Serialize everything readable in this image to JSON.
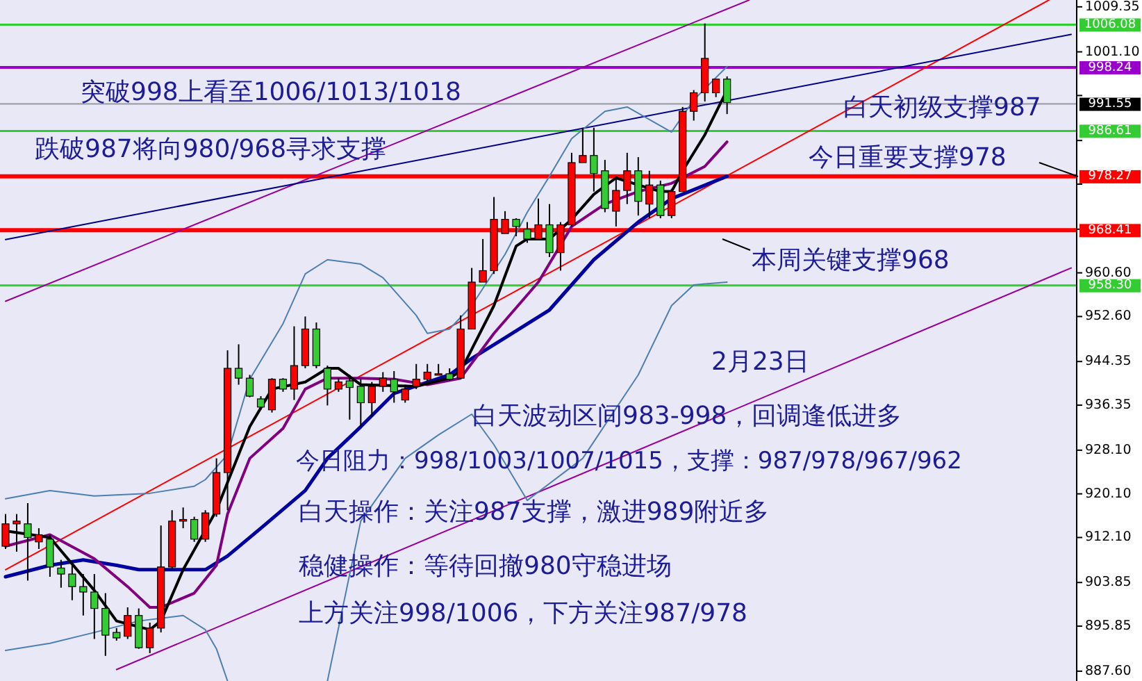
{
  "chart_data": {
    "type": "candlestick",
    "categories": [
      null,
      null,
      null,
      null,
      null,
      null,
      null,
      null,
      null,
      null,
      null,
      null,
      null,
      null,
      null,
      null,
      null,
      null,
      null,
      null,
      null,
      null,
      null,
      null,
      null,
      null,
      null,
      null,
      null,
      null,
      null,
      null,
      null,
      null,
      null,
      null,
      null,
      null,
      null,
      null,
      null,
      null,
      null,
      null,
      null,
      null,
      null,
      null,
      null,
      null,
      null,
      null,
      null,
      null,
      null,
      null,
      null,
      null,
      null,
      null,
      null,
      null,
      null,
      null,
      null,
      null,
      null,
      null,
      null,
      null,
      null,
      null,
      null,
      null,
      null,
      null,
      null,
      null,
      null,
      null,
      null,
      null,
      null,
      null,
      null,
      null,
      null,
      null,
      null,
      null,
      null,
      null,
      null,
      null,
      null,
      null,
      null
    ],
    "ohlc": [
      [
        910.5,
        916.4,
        910.0,
        914.6
      ],
      [
        914.6,
        916.4,
        909.5,
        915.1
      ],
      [
        914.6,
        918.4,
        904.2,
        912.1
      ],
      [
        911.3,
        913.8,
        910.0,
        912.6
      ],
      [
        911.8,
        912.6,
        904.9,
        906.7
      ],
      [
        906.5,
        908.0,
        902.9,
        905.4
      ],
      [
        905.4,
        907.0,
        900.6,
        903.1
      ],
      [
        903.1,
        905.4,
        897.8,
        902.1
      ],
      [
        902.1,
        905.4,
        893.5,
        899.1
      ],
      [
        899.1,
        901.9,
        890.4,
        894.2
      ],
      [
        894.7,
        895.5,
        893.2,
        893.7
      ],
      [
        894.0,
        899.3,
        893.5,
        897.8
      ],
      [
        897.8,
        899.1,
        891.7,
        891.9
      ],
      [
        891.9,
        896.5,
        890.9,
        895.5
      ],
      [
        895.5,
        914.3,
        894.7,
        906.7
      ],
      [
        906.7,
        917.1,
        906.2,
        915.1
      ],
      [
        915.1,
        917.6,
        913.8,
        915.4
      ],
      [
        915.4,
        915.9,
        911.3,
        911.8
      ],
      [
        911.8,
        917.1,
        911.3,
        916.6
      ],
      [
        916.4,
        926.6,
        915.9,
        924.0
      ],
      [
        924.0,
        946.4,
        917.1,
        943.1
      ],
      [
        943.1,
        947.5,
        940.1,
        941.3
      ],
      [
        941.3,
        941.9,
        937.8,
        938.0
      ],
      [
        937.5,
        938.0,
        935.5,
        936.0
      ],
      [
        935.5,
        941.3,
        935.0,
        941.1
      ],
      [
        941.1,
        941.3,
        938.8,
        939.3
      ],
      [
        939.3,
        950.8,
        937.3,
        943.6
      ],
      [
        943.6,
        952.6,
        943.1,
        950.3
      ],
      [
        950.3,
        951.5,
        943.1,
        943.6
      ],
      [
        943.1,
        943.6,
        936.3,
        939.3
      ],
      [
        939.3,
        941.3,
        938.8,
        940.6
      ],
      [
        940.8,
        941.9,
        933.7,
        939.6
      ],
      [
        939.8,
        941.1,
        932.4,
        936.8
      ],
      [
        936.8,
        940.6,
        934.2,
        939.8
      ],
      [
        939.8,
        942.4,
        938.8,
        941.3
      ],
      [
        941.1,
        942.6,
        936.8,
        938.8
      ],
      [
        937.3,
        940.1,
        936.8,
        939.3
      ],
      [
        939.8,
        943.9,
        939.3,
        941.1
      ],
      [
        941.1,
        943.9,
        940.6,
        942.4
      ],
      [
        942.1,
        943.9,
        941.9,
        942.1
      ],
      [
        942.1,
        943.1,
        940.8,
        941.1
      ],
      [
        941.3,
        952.8,
        941.1,
        950.3
      ],
      [
        950.3,
        961.5,
        950.3,
        958.9
      ],
      [
        958.9,
        966.8,
        958.9,
        961.0
      ],
      [
        961.0,
        974.5,
        960.4,
        970.4
      ],
      [
        967.8,
        971.9,
        967.8,
        970.4
      ],
      [
        970.4,
        970.6,
        967.3,
        969.1
      ],
      [
        968.6,
        969.9,
        966.1,
        966.8
      ],
      [
        966.8,
        974.2,
        966.8,
        969.4
      ],
      [
        969.4,
        973.2,
        963.5,
        964.3
      ],
      [
        964.3,
        969.9,
        961.0,
        969.4
      ],
      [
        969.4,
        982.6,
        969.1,
        980.8
      ],
      [
        980.8,
        987.2,
        980.8,
        982.1
      ],
      [
        982.1,
        987.2,
        975.5,
        978.8
      ],
      [
        979.3,
        981.3,
        971.7,
        972.4
      ],
      [
        971.9,
        978.3,
        969.1,
        975.7
      ],
      [
        975.7,
        982.6,
        973.2,
        979.3
      ],
      [
        979.3,
        981.8,
        971.1,
        973.7
      ],
      [
        973.2,
        979.3,
        970.6,
        976.7
      ],
      [
        976.7,
        977.5,
        970.6,
        971.1
      ],
      [
        971.1,
        976.0,
        970.6,
        975.5
      ],
      [
        975.5,
        991.0,
        975.5,
        990.2
      ],
      [
        990.2,
        994.1,
        988.5,
        993.6
      ],
      [
        993.6,
        1006.3,
        992.0,
        999.9
      ],
      [
        993.6,
        996.1,
        992.8,
        996.1
      ],
      [
        996.1,
        996.6,
        989.7,
        991.8
      ],
      null,
      null,
      null,
      null,
      null,
      null,
      null,
      null,
      null,
      null,
      null,
      null,
      null,
      null,
      null,
      null,
      null,
      null,
      null,
      null,
      null,
      null,
      null,
      null,
      null,
      null,
      null,
      null,
      null,
      null,
      null
    ],
    "colors": [
      "#ff0000",
      "#ff0000",
      "#33cc33",
      "#ff0000",
      "#33cc33",
      "#33cc33",
      "#33cc33",
      "#33cc33",
      "#33cc33",
      "#33cc33",
      "#33cc33",
      "#ff0000",
      "#33cc33",
      "#ff0000",
      "#ff0000",
      "#ff0000",
      "#ff0000",
      "#33cc33",
      "#ff0000",
      "#ff0000",
      "#ff0000",
      "#33cc33",
      "#33cc33",
      "#33cc33",
      "#ff0000",
      "#33cc33",
      "#ff0000",
      "#ff0000",
      "#33cc33",
      "#33cc33",
      "#ff0000",
      "#33cc33",
      "#33cc33",
      "#ff0000",
      "#ff0000",
      "#33cc33",
      "#ff0000",
      "#ff0000",
      "#ff0000",
      "#ff0000",
      "#33cc33",
      "#ff0000",
      "#ff0000",
      "#ff0000",
      "#ff0000",
      "#ff0000",
      "#33cc33",
      "#33cc33",
      "#ff0000",
      "#33cc33",
      "#ff0000",
      "#ff0000",
      "#ff0000",
      "#33cc33",
      "#33cc33",
      "#ff0000",
      "#ff0000",
      "#33cc33",
      "#ff0000",
      "#33cc33",
      "#ff0000",
      "#ff0000",
      "#ff0000",
      "#ff0000",
      "#ff0000",
      "#33cc33",
      null,
      null,
      null,
      null,
      null,
      null,
      null,
      null,
      null,
      null,
      null,
      null,
      null,
      null,
      null,
      null,
      null,
      null,
      null,
      null,
      null,
      null,
      null,
      null,
      null,
      null,
      null,
      null,
      null,
      null,
      null
    ],
    "series": [
      {
        "type": "line",
        "color": "#990099",
        "values": [
          955.4,
          null,
          null,
          null,
          null,
          null,
          null,
          null,
          null,
          null,
          null,
          null,
          null,
          null,
          null,
          null,
          null,
          null,
          null,
          null,
          null,
          null,
          null,
          null,
          null,
          null,
          null,
          null,
          null,
          null,
          null,
          null,
          null,
          null,
          null,
          null,
          null,
          null,
          null,
          null,
          null,
          null,
          null,
          null,
          null,
          null,
          null,
          null,
          null,
          null,
          null,
          null,
          null,
          null,
          null,
          null,
          null,
          null,
          null,
          null,
          null,
          null,
          null,
          null,
          null,
          null,
          null,
          1010.6,
          null,
          null,
          null,
          null,
          null,
          null,
          null,
          null,
          null,
          null,
          null,
          null,
          null,
          null,
          null,
          null,
          null,
          null,
          null,
          null,
          null,
          null,
          null,
          null,
          null,
          null,
          null,
          null,
          null
        ]
      },
      {
        "type": "line",
        "color": "#990099",
        "values": [
          null,
          null,
          null,
          null,
          null,
          null,
          null,
          null,
          null,
          null,
          887.9,
          null,
          null,
          null,
          null,
          null,
          null,
          null,
          null,
          null,
          null,
          null,
          null,
          null,
          null,
          null,
          null,
          null,
          null,
          null,
          null,
          null,
          null,
          null,
          null,
          null,
          null,
          null,
          null,
          null,
          null,
          null,
          null,
          null,
          null,
          null,
          null,
          null,
          null,
          null,
          null,
          null,
          null,
          null,
          null,
          null,
          null,
          null,
          null,
          null,
          null,
          null,
          null,
          null,
          null,
          null,
          null,
          null,
          null,
          null,
          null,
          null,
          null,
          null,
          null,
          null,
          null,
          null,
          null,
          null,
          null,
          null,
          null,
          null,
          null,
          null,
          null,
          null,
          null,
          null,
          null,
          null,
          null,
          null,
          null,
          null,
          961.5
        ]
      },
      {
        "type": "line",
        "color": "#ff0000",
        "values": [
          906.2,
          null,
          null,
          null,
          null,
          null,
          null,
          null,
          null,
          null,
          null,
          null,
          null,
          null,
          null,
          null,
          null,
          null,
          null,
          null,
          null,
          null,
          null,
          null,
          null,
          null,
          null,
          null,
          null,
          null,
          null,
          null,
          null,
          null,
          null,
          null,
          null,
          null,
          null,
          null,
          null,
          null,
          null,
          null,
          null,
          null,
          null,
          null,
          null,
          null,
          null,
          null,
          null,
          null,
          null,
          null,
          null,
          null,
          null,
          null,
          null,
          null,
          null,
          null,
          null,
          null,
          null,
          null,
          null,
          null,
          null,
          null,
          null,
          null,
          null,
          null,
          null,
          null,
          null,
          null,
          null,
          null,
          null,
          null,
          null,
          null,
          null,
          null,
          null,
          null,
          null,
          null,
          null,
          null,
          1010.6,
          null,
          null
        ]
      },
      {
        "type": "line",
        "color": "#00008b",
        "values": [
          966.7,
          null,
          null,
          null,
          null,
          null,
          null,
          null,
          null,
          null,
          null,
          null,
          null,
          null,
          null,
          null,
          null,
          null,
          null,
          null,
          null,
          null,
          null,
          null,
          null,
          null,
          null,
          null,
          null,
          null,
          null,
          null,
          null,
          null,
          null,
          null,
          null,
          null,
          null,
          null,
          null,
          null,
          null,
          null,
          null,
          null,
          null,
          null,
          null,
          null,
          null,
          null,
          null,
          null,
          null,
          null,
          null,
          null,
          null,
          null,
          null,
          null,
          null,
          null,
          null,
          null,
          null,
          null,
          null,
          null,
          null,
          null,
          null,
          null,
          null,
          null,
          null,
          null,
          null,
          null,
          null,
          null,
          null,
          null,
          null,
          null,
          null,
          null,
          null,
          null,
          null,
          null,
          null,
          null,
          null,
          null,
          1004.3
        ]
      },
      {
        "type": "line",
        "color": "#4f7fb0",
        "values": [
          919.2,
          null,
          null,
          null,
          920.7,
          null,
          null,
          null,
          919.7,
          null,
          null,
          null,
          null,
          920.2,
          null,
          null,
          null,
          921.5,
          922.7,
          null,
          927.3,
          null,
          941.1,
          null,
          null,
          951.3,
          null,
          960.4,
          null,
          963.0,
          null,
          null,
          962.2,
          null,
          959.7,
          null,
          null,
          952.8,
          949.5,
          null,
          950.3,
          null,
          954.6,
          null,
          null,
          964.0,
          null,
          971.7,
          null,
          978.3,
          null,
          985.2,
          null,
          null,
          990.2,
          null,
          991.0,
          null,
          null,
          null,
          986.4,
          null,
          992.3,
          null,
          null,
          998.4,
          null,
          null,
          null,
          null,
          null,
          null,
          null,
          null,
          null,
          null,
          null,
          null,
          null,
          null,
          null,
          null,
          null,
          null,
          null,
          null,
          null,
          null,
          null,
          null,
          null,
          null,
          null,
          null,
          null,
          null,
          null
        ]
      },
      {
        "type": "line",
        "color": "#4f7fb0",
        "values": [
          891.4,
          null,
          null,
          null,
          892.7,
          null,
          null,
          null,
          894.7,
          null,
          null,
          null,
          896.8,
          null,
          null,
          null,
          897.8,
          null,
          895.2,
          891.7,
          885.8,
          null,
          null,
          null,
          null,
          null,
          null,
          null,
          null,
          null,
          null,
          null,
          null,
          null,
          null,
          null,
          null,
          null,
          null,
          null,
          null,
          null,
          null,
          null,
          null,
          null,
          null,
          null,
          null,
          null,
          null,
          null,
          null,
          null,
          null,
          null,
          null,
          null,
          null,
          null,
          null,
          null,
          null,
          null,
          null,
          null,
          null,
          null,
          null,
          null,
          null,
          null,
          null,
          null,
          null,
          null,
          null,
          null,
          null,
          null,
          null,
          null,
          null,
          null,
          null,
          null,
          null,
          null,
          null,
          null,
          null,
          null,
          null,
          null,
          null,
          null,
          null
        ]
      },
      {
        "type": "line",
        "color": "#4f7fb0",
        "values": [
          null,
          null,
          null,
          null,
          null,
          null,
          null,
          null,
          null,
          null,
          null,
          null,
          null,
          null,
          null,
          null,
          null,
          null,
          null,
          null,
          null,
          null,
          null,
          null,
          null,
          null,
          null,
          null,
          null,
          885.8,
          null,
          null,
          915.1,
          null,
          null,
          null,
          926.6,
          null,
          null,
          930.9,
          null,
          null,
          934.7,
          null,
          929.1,
          null,
          null,
          918.9,
          null,
          null,
          null,
          null,
          926.6,
          null,
          null,
          null,
          null,
          941.9,
          null,
          null,
          954.6,
          null,
          958.4,
          null,
          null,
          958.9,
          null,
          null,
          null,
          null,
          null,
          null,
          null,
          null,
          null,
          null,
          null,
          null,
          null,
          null,
          null,
          null,
          null,
          null,
          null,
          null,
          null,
          null,
          null,
          null,
          null,
          null,
          null,
          null,
          null,
          null,
          null
        ]
      },
      {
        "type": "line",
        "color": "#0000a0",
        "values": [
          904.9,
          null,
          null,
          null,
          907.0,
          null,
          null,
          908.0,
          null,
          null,
          907.0,
          null,
          906.2,
          null,
          null,
          null,
          null,
          null,
          906.2,
          null,
          908.7,
          null,
          null,
          913.8,
          null,
          null,
          null,
          920.7,
          null,
          926.6,
          null,
          null,
          932.4,
          null,
          null,
          938.5,
          null,
          null,
          null,
          null,
          941.9,
          null,
          944.9,
          null,
          null,
          948.7,
          null,
          null,
          null,
          953.8,
          null,
          null,
          null,
          963.0,
          null,
          null,
          null,
          969.9,
          null,
          null,
          974.2,
          null,
          null,
          null,
          null,
          978.3,
          null,
          null,
          null,
          null,
          null,
          null,
          null,
          null,
          null,
          null,
          null,
          null,
          null,
          null,
          null,
          null,
          null,
          null,
          null,
          null,
          null,
          null,
          null,
          null,
          null,
          null,
          null,
          null,
          null,
          null,
          null
        ]
      },
      {
        "type": "line",
        "color": "#800080",
        "values": [
          910.5,
          null,
          null,
          null,
          912.6,
          null,
          null,
          null,
          908.2,
          null,
          null,
          903.1,
          null,
          899.3,
          899.3,
          null,
          null,
          901.9,
          null,
          907.0,
          916.4,
          null,
          926.6,
          null,
          null,
          932.1,
          null,
          939.3,
          null,
          941.3,
          null,
          null,
          941.3,
          null,
          null,
          941.1,
          null,
          null,
          940.1,
          null,
          null,
          941.3,
          null,
          null,
          949.5,
          null,
          null,
          null,
          958.9,
          null,
          null,
          969.1,
          null,
          null,
          973.2,
          null,
          null,
          975.5,
          null,
          null,
          977.0,
          null,
          null,
          980.1,
          null,
          984.6,
          null,
          null,
          null,
          null,
          null,
          null,
          null,
          null,
          null,
          null,
          null,
          null,
          null,
          null,
          null,
          null,
          null,
          null,
          null,
          null,
          null,
          null,
          null,
          null,
          null,
          null,
          null,
          null,
          null,
          null,
          null
        ]
      },
      {
        "type": "line",
        "color": "#000000",
        "values": [
          913.3,
          null,
          null,
          null,
          912.1,
          null,
          null,
          null,
          902.4,
          null,
          896.8,
          null,
          null,
          895.2,
          896.8,
          null,
          906.2,
          null,
          null,
          917.1,
          null,
          null,
          932.4,
          null,
          939.3,
          null,
          null,
          940.6,
          null,
          943.1,
          943.1,
          null,
          940.1,
          null,
          null,
          null,
          null,
          939.8,
          null,
          null,
          941.3,
          942.6,
          null,
          null,
          954.6,
          null,
          965.5,
          966.8,
          null,
          966.8,
          null,
          970.4,
          null,
          975.0,
          null,
          978.0,
          null,
          976.7,
          null,
          975.5,
          975.5,
          979.3,
          null,
          985.9,
          null,
          994.1,
          null,
          null,
          null,
          null,
          null,
          null,
          null,
          null,
          null,
          null,
          null,
          null,
          null,
          null,
          null,
          null,
          null,
          null,
          null,
          null,
          null,
          null,
          null,
          null,
          null,
          null,
          null,
          null,
          null,
          null,
          null
        ]
      }
    ],
    "ylim": [
      885.8,
      1010.6
    ],
    "yticks": [
      {
        "value": 1009.35,
        "label": "1009.35"
      },
      {
        "value": 1001.1,
        "label": "1001.10"
      },
      {
        "value": 993.1,
        "label": null
      },
      {
        "value": 984.85,
        "label": null
      },
      {
        "value": 976.85,
        "label": null
      },
      {
        "value": 968.6,
        "label": null
      },
      {
        "value": 960.6,
        "label": "960.60"
      },
      {
        "value": 952.6,
        "label": "952.60"
      },
      {
        "value": 944.35,
        "label": "944.35"
      },
      {
        "value": 936.35,
        "label": "936.35"
      },
      {
        "value": 928.1,
        "label": "928.10"
      },
      {
        "value": 920.1,
        "label": "920.10"
      },
      {
        "value": 912.1,
        "label": "912.10"
      },
      {
        "value": 903.85,
        "label": "903.85"
      },
      {
        "value": 895.85,
        "label": "895.85"
      },
      {
        "value": 887.6,
        "label": "887.60"
      }
    ],
    "tick_labels": "y",
    "ref_lines": [
      {
        "axis": "y",
        "value": 1006.08,
        "label": "1006.08",
        "color": "#33cc33"
      },
      {
        "axis": "y",
        "value": 998.24,
        "label": "998.24",
        "color": "#9900cc"
      },
      {
        "axis": "y",
        "value": 991.55,
        "label": "991.55",
        "color": "#000000"
      },
      {
        "axis": "y",
        "value": 986.61,
        "label": "986.61",
        "color": "#33cc33"
      },
      {
        "axis": "y",
        "value": 978.27,
        "label": "978.27",
        "color": "#ff0000"
      },
      {
        "axis": "y",
        "value": 968.41,
        "label": "968.41",
        "color": "#ff0000"
      },
      {
        "axis": "y",
        "value": 958.3,
        "label": "958.30",
        "color": "#33cc33"
      }
    ],
    "annotations": [
      "突破998上看至1006/1013/1018",
      "跌破987将向980/968寻求支撑",
      "白天初级支撑987",
      "今日重要支撑978",
      "本周关键支撑968",
      "2月23日",
      "白天波动区间983-998，回调逢低进多",
      "今日阻力：998/1003/1007/1015，支撑：987/978/967/962",
      "白天操作：关注987支撑，激进989附近多",
      "稳健操作：等待回撤980守稳进场",
      "上方关注998/1006，下方关注987/978"
    ]
  }
}
